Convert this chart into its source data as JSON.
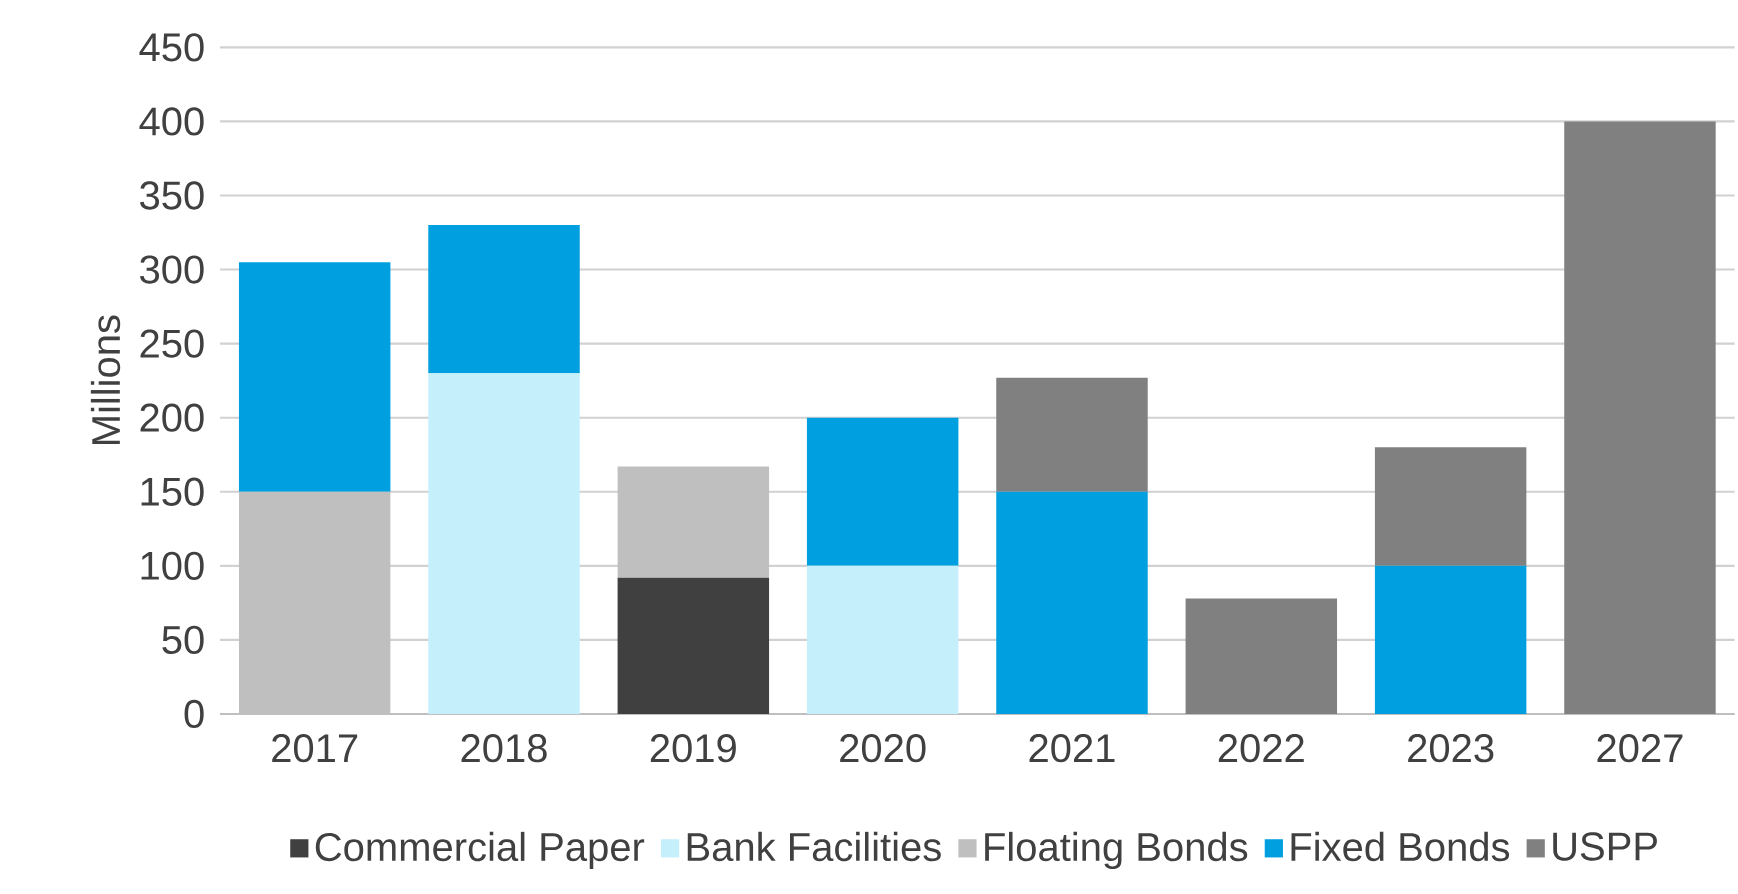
{
  "chart_data": {
    "type": "bar",
    "stacked": true,
    "ylabel": "Millions",
    "categories": [
      "2017",
      "2018",
      "2019",
      "2020",
      "2021",
      "2022",
      "2023",
      "2027"
    ],
    "series": [
      {
        "name": "Commercial Paper",
        "color": "#404040",
        "values": [
          null,
          null,
          92,
          null,
          null,
          null,
          null,
          null
        ]
      },
      {
        "name": "Bank Facilities",
        "color": "#c6effc",
        "values": [
          null,
          230,
          null,
          100,
          null,
          null,
          null,
          null
        ]
      },
      {
        "name": "Floating Bonds",
        "color": "#bfbfbf",
        "values": [
          150,
          null,
          75,
          null,
          null,
          null,
          null,
          null
        ]
      },
      {
        "name": "Fixed Bonds",
        "color": "#00a0e0",
        "values": [
          155,
          100,
          null,
          100,
          150,
          null,
          100,
          null
        ]
      },
      {
        "name": "USPP",
        "color": "#808080",
        "values": [
          null,
          null,
          null,
          null,
          77,
          78,
          80,
          400
        ]
      }
    ],
    "ylim": [
      0,
      450
    ],
    "yticks": [
      0,
      50,
      100,
      150,
      200,
      250,
      300,
      350,
      400,
      450
    ],
    "grid": "y",
    "legend": "bottom"
  }
}
